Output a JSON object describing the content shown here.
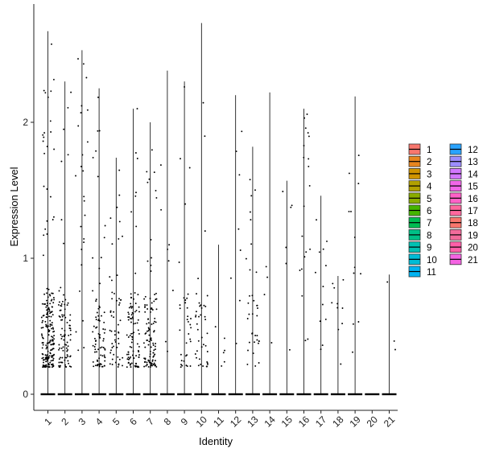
{
  "chart_data": {
    "type": "violin",
    "xlabel": "Identity",
    "ylabel": "Expression Level",
    "categories": [
      "1",
      "2",
      "3",
      "4",
      "5",
      "6",
      "7",
      "8",
      "9",
      "10",
      "11",
      "12",
      "13",
      "14",
      "15",
      "16",
      "17",
      "18",
      "19",
      "20",
      "21"
    ],
    "ylim": [
      -0.12,
      2.86
    ],
    "yticks": [
      0,
      1,
      2
    ],
    "violin_max": [
      2.67,
      2.3,
      2.53,
      2.25,
      1.74,
      2.1,
      2.0,
      2.38,
      2.3,
      2.73,
      1.1,
      2.2,
      1.82,
      2.22,
      1.57,
      2.1,
      1.46,
      0.87,
      2.19,
      0,
      0.88
    ],
    "point_density": [
      200,
      90,
      25,
      80,
      55,
      95,
      110,
      8,
      35,
      40,
      6,
      8,
      35,
      4,
      6,
      20,
      12,
      10,
      12,
      0,
      3
    ],
    "point_spread": [
      0.6,
      0.7,
      0.9,
      0.6,
      0.5,
      0.55,
      0.55,
      1.0,
      0.7,
      0.7,
      1.0,
      1.0,
      0.7,
      1.0,
      1.0,
      0.9,
      1.0,
      1.0,
      1.0,
      1.0,
      1.0
    ],
    "legend": {
      "placement": "right",
      "entries": [
        "1",
        "2",
        "3",
        "4",
        "5",
        "6",
        "7",
        "8",
        "9",
        "10",
        "11",
        "12",
        "13",
        "14",
        "15",
        "16",
        "17",
        "18",
        "19",
        "20",
        "21"
      ],
      "colors": [
        "#F8766D",
        "#E7851E",
        "#D09400",
        "#B2A100",
        "#89AC00",
        "#45B500",
        "#00BC51",
        "#00C087",
        "#00C0B2",
        "#00BCD6",
        "#00B3F2",
        "#29A3FF",
        "#9C8DFF",
        "#D277FF",
        "#F166E8",
        "#FF61C7",
        "#FF689E",
        "#F8766D",
        "#F26B9B",
        "#FF5FA8",
        "#F564E3"
      ]
    }
  }
}
